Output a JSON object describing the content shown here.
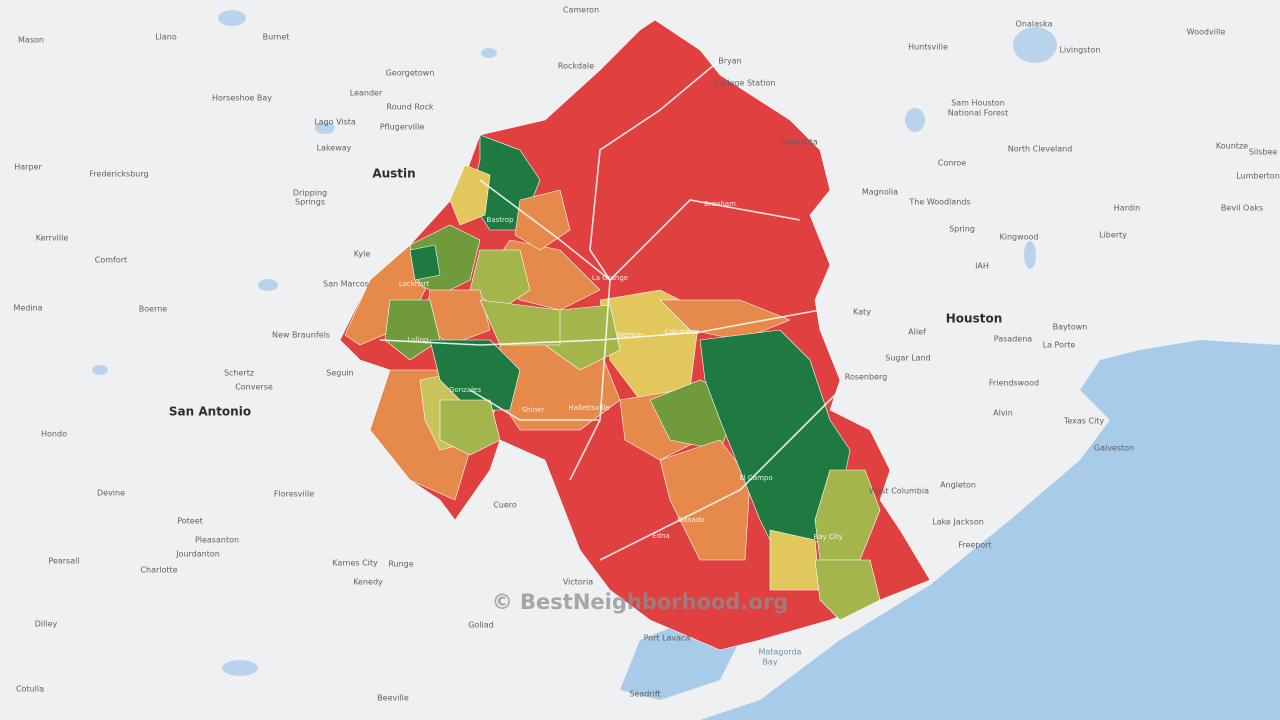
{
  "places": [
    "Cameron",
    "Onalaska",
    "Mason",
    "Llano",
    "Burnet",
    "Bryan",
    "Huntsville",
    "Livingston",
    "Woodville",
    "Georgetown",
    "Rockdale",
    "College Station",
    "Horseshoe Bay",
    "Leander",
    "Round Rock",
    "Pflugerville",
    "Lago Vista",
    "Lakeway",
    "Navasota",
    "Sam Houston",
    "National Forest",
    "Harper",
    "Fredericksburg",
    "Dripping",
    "Springs",
    "Conroe",
    "North Cleveland",
    "Kountze",
    "Silsbee",
    "Lumberton",
    "Magnolia",
    "The Woodlands",
    "Hardin",
    "Bevil Oaks",
    "Kerrville",
    "Comfort",
    "Kyle",
    "Spring",
    "Kingwood",
    "Liberty",
    "IAH",
    "San Marcos",
    "Medina",
    "Boerne",
    "New Braunfels",
    "Katy",
    "Baytown",
    "Alief",
    "Pasadena",
    "La Porte",
    "Sugar Land",
    "Schertz",
    "Converse",
    "Seguin",
    "Rosenberg",
    "Friendswood",
    "Alvin",
    "Texas City",
    "Hondo",
    "Galveston",
    "Angleton",
    "West Columbia",
    "Devine",
    "Floresville",
    "Lake Jackson",
    "Poteet",
    "Pleasanton",
    "Jourdanton",
    "Freeport",
    "Pearsall",
    "Charlotte",
    "Karnes City",
    "Runge",
    "Kenedy",
    "Victoria",
    "Dilley",
    "Goliad",
    "Port Lavaca",
    "Cotulla",
    "Beeville",
    "Seadrift",
    "Cuero"
  ],
  "major_places": [
    "Austin",
    "Houston",
    "San Antonio"
  ],
  "region_places": [
    "Bastrop",
    "La Grange",
    "Brenham",
    "Lockhart",
    "Luling",
    "Weimar",
    "Columbus",
    "Gonzales",
    "Shiner",
    "Hallettsville",
    "El Campo",
    "Bay City",
    "Edna",
    "Ganado"
  ],
  "water_places": [
    "Matagorda",
    "Bay"
  ],
  "watermark": "© BestNeighborhood.org"
}
